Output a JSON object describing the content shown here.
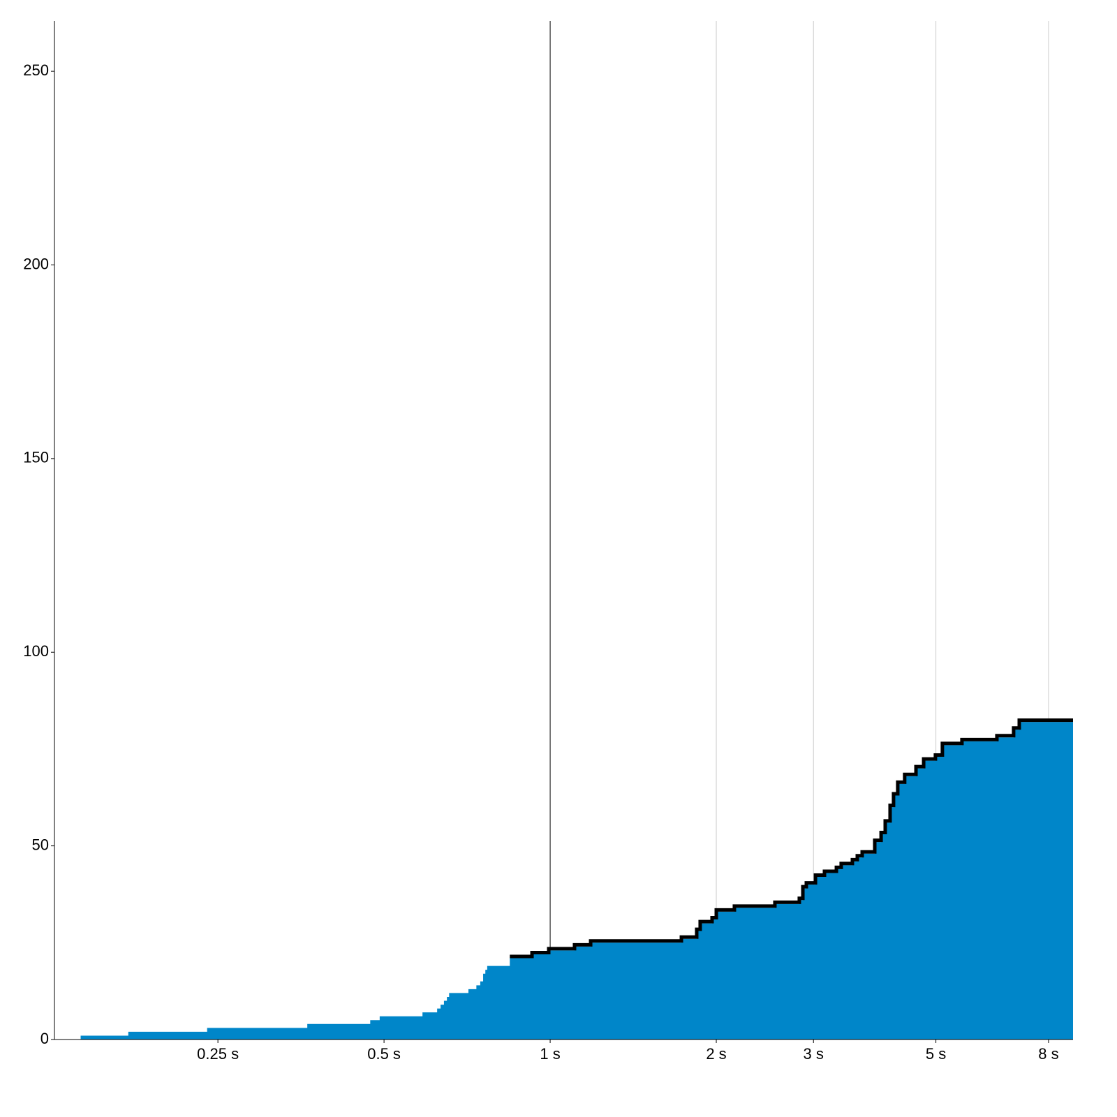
{
  "chart_data": {
    "type": "step-area",
    "series": [
      {
        "color": "#0086c9",
        "x": [
          0.141,
          0.172,
          0.239,
          0.363,
          0.472,
          0.491,
          0.587,
          0.624,
          0.633,
          0.642,
          0.65,
          0.656,
          0.711,
          0.735,
          0.747,
          0.756,
          0.763,
          0.769,
          0.845,
          0.927,
          0.994,
          1.107,
          1.184,
          1.729,
          1.843,
          1.87,
          1.965,
          2.0,
          2.157,
          2.554,
          2.828,
          2.87,
          2.912,
          3.025,
          3.141,
          3.301,
          3.368,
          3.529,
          3.602,
          3.676,
          3.874,
          3.978,
          4.047,
          4.13,
          4.19,
          4.264,
          4.389,
          4.601,
          4.751,
          4.99,
          5.137,
          5.574,
          6.449,
          6.915,
          7.08,
          8.86
        ],
        "values": [
          1,
          2,
          3,
          4,
          5,
          6,
          7,
          8,
          9,
          10,
          11,
          12,
          13,
          14,
          15,
          17,
          18,
          19,
          21,
          22,
          23,
          24,
          25,
          26,
          28,
          30,
          31,
          33,
          34,
          35,
          36,
          39,
          40,
          42,
          43,
          44,
          45,
          46,
          47,
          48,
          51,
          53,
          56,
          60,
          63,
          66,
          68,
          70,
          72,
          73,
          76,
          77,
          78,
          80,
          82,
          82
        ]
      }
    ],
    "outline_color": "#000000",
    "outline_from": 0.84,
    "xlog": true,
    "xlim": [
      0.1264,
      8.86
    ],
    "ylim": [
      0,
      263
    ],
    "xticks": [
      {
        "value": 0.25,
        "label": "0.25 s"
      },
      {
        "value": 0.5,
        "label": "0.5 s"
      },
      {
        "value": 1,
        "label": "1 s"
      },
      {
        "value": 2,
        "label": "2 s"
      },
      {
        "value": 3,
        "label": "3 s"
      },
      {
        "value": 5,
        "label": "5 s"
      },
      {
        "value": 8,
        "label": "8 s"
      }
    ],
    "yticks": [
      0,
      50,
      100,
      150,
      200,
      250
    ],
    "xgrid": [
      1,
      2,
      3,
      5,
      8
    ],
    "reference_x": 1
  }
}
